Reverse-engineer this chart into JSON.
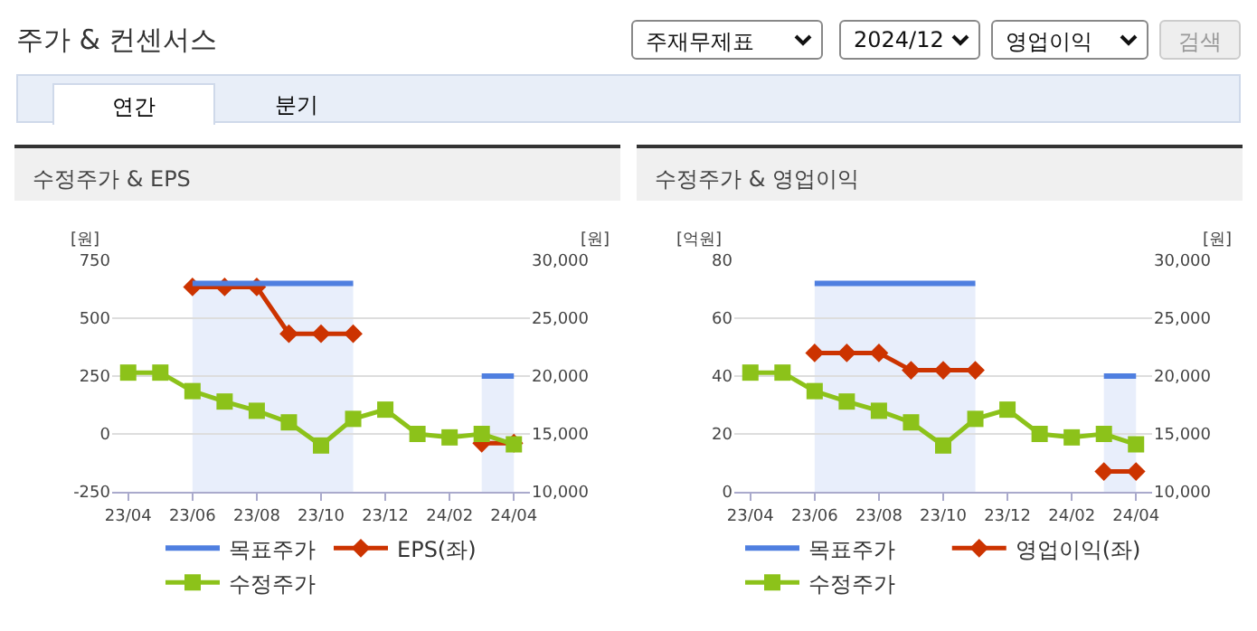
{
  "chart_data": [
    {
      "type": "other",
      "title": "주가 & 컨센서스",
      "annotations": [
        "주재무제표",
        "2024/12",
        "영업이익",
        "검색",
        "연간",
        "분기"
      ]
    },
    {
      "type": "line",
      "title": "수정주가 & EPS",
      "ylabel": "[원]",
      "y2label": "[원]",
      "categories": [
        "23/04",
        null,
        "23/06",
        null,
        "23/08",
        null,
        "23/10",
        null,
        "23/12",
        null,
        "24/02",
        null,
        "24/04"
      ],
      "series": [
        {
          "name": "목표주가",
          "type": "area",
          "axis": "y2",
          "color": "#4f7fe0",
          "values": [
            null,
            null,
            28000,
            28000,
            28000,
            28000,
            28000,
            28000,
            null,
            null,
            null,
            20000,
            20000
          ]
        },
        {
          "name": "EPS(좌)",
          "type": "line",
          "marker": "diamond",
          "color": "#cc3300",
          "values": [
            null,
            null,
            635,
            635,
            635,
            433,
            433,
            433,
            null,
            null,
            null,
            -40,
            -40
          ]
        },
        {
          "name": "수정주가",
          "type": "line",
          "marker": "square",
          "axis": "y2",
          "color": "#8cc21a",
          "values": [
            20300,
            20300,
            18700,
            17800,
            17000,
            16000,
            14000,
            16300,
            17100,
            15000,
            14700,
            15000,
            14100
          ]
        }
      ],
      "ylim": [
        -250,
        750
      ],
      "yticks": [
        -250,
        0,
        250,
        500,
        750
      ],
      "y2lim": [
        10000,
        30000
      ],
      "y2ticks": [
        {
          "value": 10000,
          "label": "10,000"
        },
        {
          "value": 15000,
          "label": "15,000"
        },
        {
          "value": 20000,
          "label": "20,000"
        },
        {
          "value": 25000,
          "label": "25,000"
        },
        {
          "value": 30000,
          "label": "30,000"
        }
      ],
      "grid": "y",
      "legend": "bottom"
    },
    {
      "type": "line",
      "title": "수정주가 & 영업이익",
      "ylabel": "[억원]",
      "y2label": "[원]",
      "categories": [
        "23/04",
        null,
        "23/06",
        null,
        "23/08",
        null,
        "23/10",
        null,
        "23/12",
        null,
        "24/02",
        null,
        "24/04"
      ],
      "series": [
        {
          "name": "목표주가",
          "type": "area",
          "axis": "y2",
          "color": "#4f7fe0",
          "values": [
            null,
            null,
            28000,
            28000,
            28000,
            28000,
            28000,
            28000,
            null,
            null,
            null,
            20000,
            20000
          ]
        },
        {
          "name": "영업이익(좌)",
          "type": "line",
          "marker": "diamond",
          "color": "#cc3300",
          "values": [
            null,
            null,
            48,
            48,
            48,
            42,
            42,
            42,
            null,
            null,
            null,
            7,
            7
          ]
        },
        {
          "name": "수정주가",
          "type": "line",
          "marker": "square",
          "axis": "y2",
          "color": "#8cc21a",
          "values": [
            20300,
            20300,
            18700,
            17800,
            17000,
            16000,
            14000,
            16300,
            17100,
            15000,
            14700,
            15000,
            14100
          ]
        }
      ],
      "ylim": [
        0,
        80
      ],
      "yticks": [
        0,
        20,
        40,
        60,
        80
      ],
      "y2lim": [
        10000,
        30000
      ],
      "y2ticks": [
        {
          "value": 10000,
          "label": "10,000"
        },
        {
          "value": 15000,
          "label": "15,000"
        },
        {
          "value": 20000,
          "label": "20,000"
        },
        {
          "value": 25000,
          "label": "25,000"
        },
        {
          "value": 30000,
          "label": "30,000"
        }
      ],
      "grid": "y",
      "legend": "bottom"
    }
  ]
}
